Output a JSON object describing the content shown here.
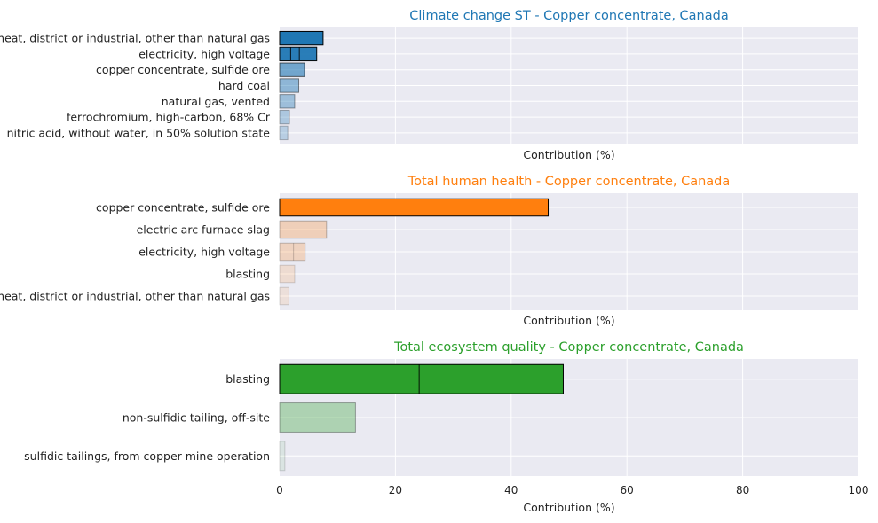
{
  "chart_data": [
    {
      "type": "bar",
      "orientation": "horizontal",
      "title": "Climate change ST - Copper concentrate, Canada",
      "title_color": "#1f77b4",
      "bar_color": "#1f77b4",
      "xlabel": "Contribution (%)",
      "xlim": [
        0,
        100
      ],
      "grid": true,
      "categories": [
        "heat, district or industrial, other than natural gas",
        "electricity, high voltage",
        "copper concentrate, sulfide ore",
        "hard coal",
        "natural gas, vented",
        "ferrochromium, high-carbon, 68% Cr",
        "nitric acid, without water, in 50% solution state"
      ],
      "values": [
        7.5,
        6.4,
        4.3,
        3.3,
        2.6,
        1.7,
        1.4
      ],
      "opacity": [
        1.0,
        0.95,
        0.6,
        0.45,
        0.38,
        0.3,
        0.25
      ],
      "segments": [
        [],
        [
          1.9,
          3.4
        ],
        [],
        [],
        [],
        [],
        []
      ]
    },
    {
      "type": "bar",
      "orientation": "horizontal",
      "title": "Total human health - Copper concentrate, Canada",
      "title_color": "#ff7f0e",
      "bar_color": "#ff7f0e",
      "xlabel": "Contribution (%)",
      "xlim": [
        0,
        100
      ],
      "grid": true,
      "categories": [
        "copper concentrate, sulfide ore",
        "electric arc furnace slag",
        "electricity, high voltage",
        "blasting",
        "heat, district or industrial, other than natural gas"
      ],
      "values": [
        46.4,
        8.1,
        4.4,
        2.6,
        1.6
      ],
      "opacity": [
        1.0,
        0.25,
        0.22,
        0.14,
        0.1
      ],
      "segments": [
        [],
        [],
        [
          2.4
        ],
        [],
        []
      ]
    },
    {
      "type": "bar",
      "orientation": "horizontal",
      "title": "Total ecosystem quality - Copper concentrate, Canada",
      "title_color": "#2ca02c",
      "bar_color": "#2ca02c",
      "xlabel": "Contribution (%)",
      "xlim": [
        0,
        100
      ],
      "xticks": [
        0,
        20,
        40,
        60,
        80,
        100
      ],
      "grid": true,
      "categories": [
        "blasting",
        "non-sulfidic tailing, off-site",
        "sulfidic tailings, from copper mine operation"
      ],
      "values": [
        49.0,
        13.1,
        0.9
      ],
      "opacity": [
        1.0,
        0.32,
        0.08
      ],
      "segments": [
        [
          24.1
        ],
        [],
        []
      ]
    }
  ]
}
